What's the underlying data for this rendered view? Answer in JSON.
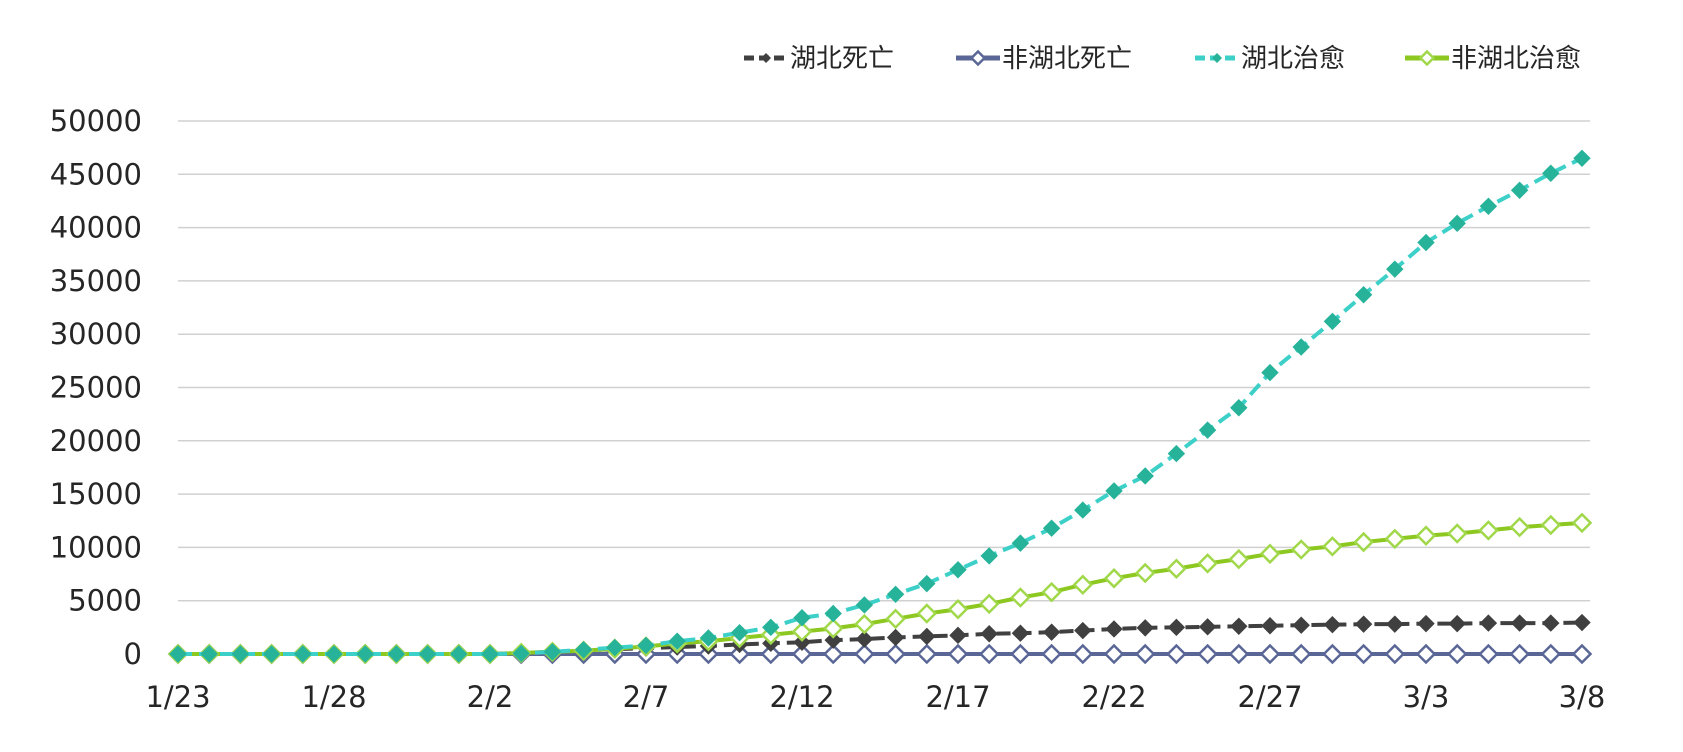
{
  "chart_data": {
    "type": "line",
    "x": [
      "1/23",
      "1/24",
      "1/25",
      "1/26",
      "1/27",
      "1/28",
      "1/29",
      "1/30",
      "1/31",
      "2/1",
      "2/2",
      "2/3",
      "2/4",
      "2/5",
      "2/6",
      "2/7",
      "2/8",
      "2/9",
      "2/10",
      "2/11",
      "2/12",
      "2/13",
      "2/14",
      "2/15",
      "2/16",
      "2/17",
      "2/18",
      "2/19",
      "2/20",
      "2/21",
      "2/22",
      "2/23",
      "2/24",
      "2/25",
      "2/26",
      "2/27",
      "2/28",
      "2/29",
      "3/1",
      "3/2",
      "3/3",
      "3/4",
      "3/5",
      "3/6",
      "3/7",
      "3/8"
    ],
    "x_tick_labels": [
      "1/23",
      "1/28",
      "2/2",
      "2/7",
      "2/12",
      "2/17",
      "2/22",
      "2/27",
      "3/3",
      "3/8"
    ],
    "ylim": [
      0,
      50000
    ],
    "y_tick_labels": [
      "0",
      "5000",
      "10000",
      "15000",
      "20000",
      "25000",
      "30000",
      "35000",
      "40000",
      "45000",
      "50000"
    ],
    "grid": true,
    "legend_position": "top-right",
    "series": [
      {
        "name": "湖北死亡",
        "color": "#404040",
        "marker": "filled-diamond",
        "line_style": "dashed",
        "values": [
          0,
          0,
          0,
          0,
          0,
          0,
          0,
          0,
          0,
          0,
          0,
          100,
          200,
          350,
          450,
          550,
          650,
          750,
          900,
          1000,
          1100,
          1300,
          1400,
          1550,
          1650,
          1750,
          1900,
          1950,
          2050,
          2200,
          2350,
          2450,
          2500,
          2550,
          2600,
          2650,
          2700,
          2750,
          2800,
          2800,
          2850,
          2850,
          2900,
          2900,
          2900,
          2950
        ]
      },
      {
        "name": "非湖北死亡",
        "color": "#5a6796",
        "marker": "hollow-diamond",
        "line_style": "solid",
        "values": [
          0,
          0,
          0,
          0,
          0,
          0,
          0,
          0,
          0,
          0,
          0,
          0,
          0,
          0,
          0,
          0,
          0,
          0,
          0,
          0,
          0,
          0,
          0,
          0,
          0,
          0,
          0,
          0,
          0,
          0,
          0,
          0,
          0,
          0,
          0,
          0,
          0,
          0,
          0,
          0,
          0,
          0,
          0,
          0,
          0,
          0
        ]
      },
      {
        "name": "湖北治愈",
        "color": "#3cd0c8",
        "marker_color": "#26b39a",
        "marker": "filled-diamond",
        "line_style": "dashed",
        "values": [
          0,
          0,
          0,
          0,
          0,
          0,
          0,
          0,
          0,
          0,
          0,
          50,
          200,
          400,
          600,
          800,
          1200,
          1500,
          2000,
          2500,
          3400,
          3800,
          4600,
          5600,
          6600,
          7900,
          9200,
          10400,
          11800,
          13500,
          15300,
          16700,
          18800,
          21000,
          23100,
          26400,
          28800,
          31200,
          33700,
          36100,
          38600,
          40400,
          42000,
          43500,
          45100,
          46500
        ]
      },
      {
        "name": "非湖北治愈",
        "color": "#8cc820",
        "marker_color": "#a0d84a",
        "marker": "hollow-diamond",
        "line_style": "solid",
        "values": [
          0,
          0,
          0,
          0,
          0,
          0,
          0,
          0,
          0,
          0,
          0,
          100,
          200,
          300,
          500,
          700,
          1000,
          1200,
          1500,
          1800,
          2100,
          2400,
          2800,
          3300,
          3800,
          4200,
          4700,
          5300,
          5800,
          6500,
          7100,
          7600,
          8000,
          8500,
          8900,
          9400,
          9800,
          10100,
          10500,
          10800,
          11100,
          11300,
          11600,
          11900,
          12100,
          12300
        ]
      }
    ]
  }
}
